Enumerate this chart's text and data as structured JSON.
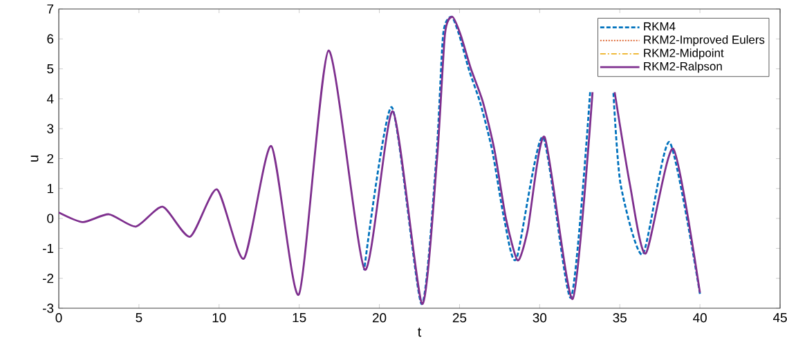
{
  "chart_data": {
    "type": "line",
    "xlabel": "t",
    "ylabel": "u",
    "xlim": [
      0,
      45
    ],
    "xticks": [
      0,
      5,
      10,
      15,
      20,
      25,
      30,
      35,
      40,
      45
    ],
    "ylim": [
      -3,
      7
    ],
    "yticks": [
      -3,
      -2,
      -1,
      0,
      1,
      2,
      3,
      4,
      5,
      6,
      7
    ],
    "legend": "top right",
    "x": [
      0,
      1.5,
      3.13,
      4.81,
      6.48,
      8.19,
      9.87,
      11.55,
      13.26,
      14.98,
      16.83,
      19.09,
      20.84,
      22.66,
      23.6,
      24.09,
      24.55,
      25.06,
      25.72,
      26.45,
      27.18,
      27.9,
      28.63,
      29.25,
      30.31,
      32.06,
      33.3,
      33.95,
      34.68,
      35.63,
      36.62,
      38.33,
      40
    ],
    "series": [
      {
        "name": "RKM4",
        "color": "#0072bd",
        "line_style": "dashed",
        "x": [
          19.05,
          20.77,
          22.62,
          23.55,
          23.98,
          24.5,
          24.97,
          25.6,
          26.3,
          27.05,
          27.8,
          28.55,
          30.2,
          31.95,
          33.15,
          33.8,
          34.6,
          35.05,
          36.43,
          38.1,
          40
        ],
        "values": [
          -1.73,
          3.72,
          -2.85,
          2.0,
          6.15,
          6.74,
          6.15,
          4.95,
          3.85,
          2.25,
          -0.05,
          -1.35,
          2.72,
          -2.65,
          4.22,
          null,
          4.22,
          1.14,
          -1.2,
          2.55,
          -2.52
        ]
      },
      {
        "name": "RKM2-Improved Eulers",
        "color": "#d95319",
        "line_style": "dotted",
        "values": [
          null,
          null,
          null,
          null,
          null,
          null,
          null,
          null,
          null,
          null,
          null,
          null,
          null,
          null,
          null,
          null,
          null,
          null,
          null,
          null,
          null,
          null,
          null,
          null,
          null,
          null,
          null,
          null,
          null,
          null,
          null,
          null,
          null
        ]
      },
      {
        "name": "RKM2-Midpoint",
        "color": "#edb120",
        "line_style": "dashdot",
        "values": [
          null,
          null,
          null,
          null,
          null,
          null,
          null,
          null,
          null,
          null,
          null,
          null,
          null,
          null,
          null,
          null,
          null,
          null,
          null,
          null,
          null,
          null,
          null,
          null,
          null,
          null,
          null,
          null,
          null,
          null,
          null,
          null,
          null
        ]
      },
      {
        "name": "RKM2-Ralpson",
        "color": "#7e2f8e",
        "line_style": "solid",
        "values": [
          0.2,
          -0.12,
          0.14,
          -0.27,
          0.39,
          -0.61,
          0.97,
          -1.34,
          2.42,
          -2.54,
          5.61,
          -1.71,
          3.58,
          -2.85,
          2.0,
          6.15,
          6.74,
          6.15,
          4.99,
          3.91,
          2.29,
          -0.01,
          -1.4,
          -0.4,
          2.72,
          -2.69,
          4.22,
          null,
          4.22,
          1.14,
          -1.17,
          2.33,
          -2.48
        ]
      }
    ]
  }
}
